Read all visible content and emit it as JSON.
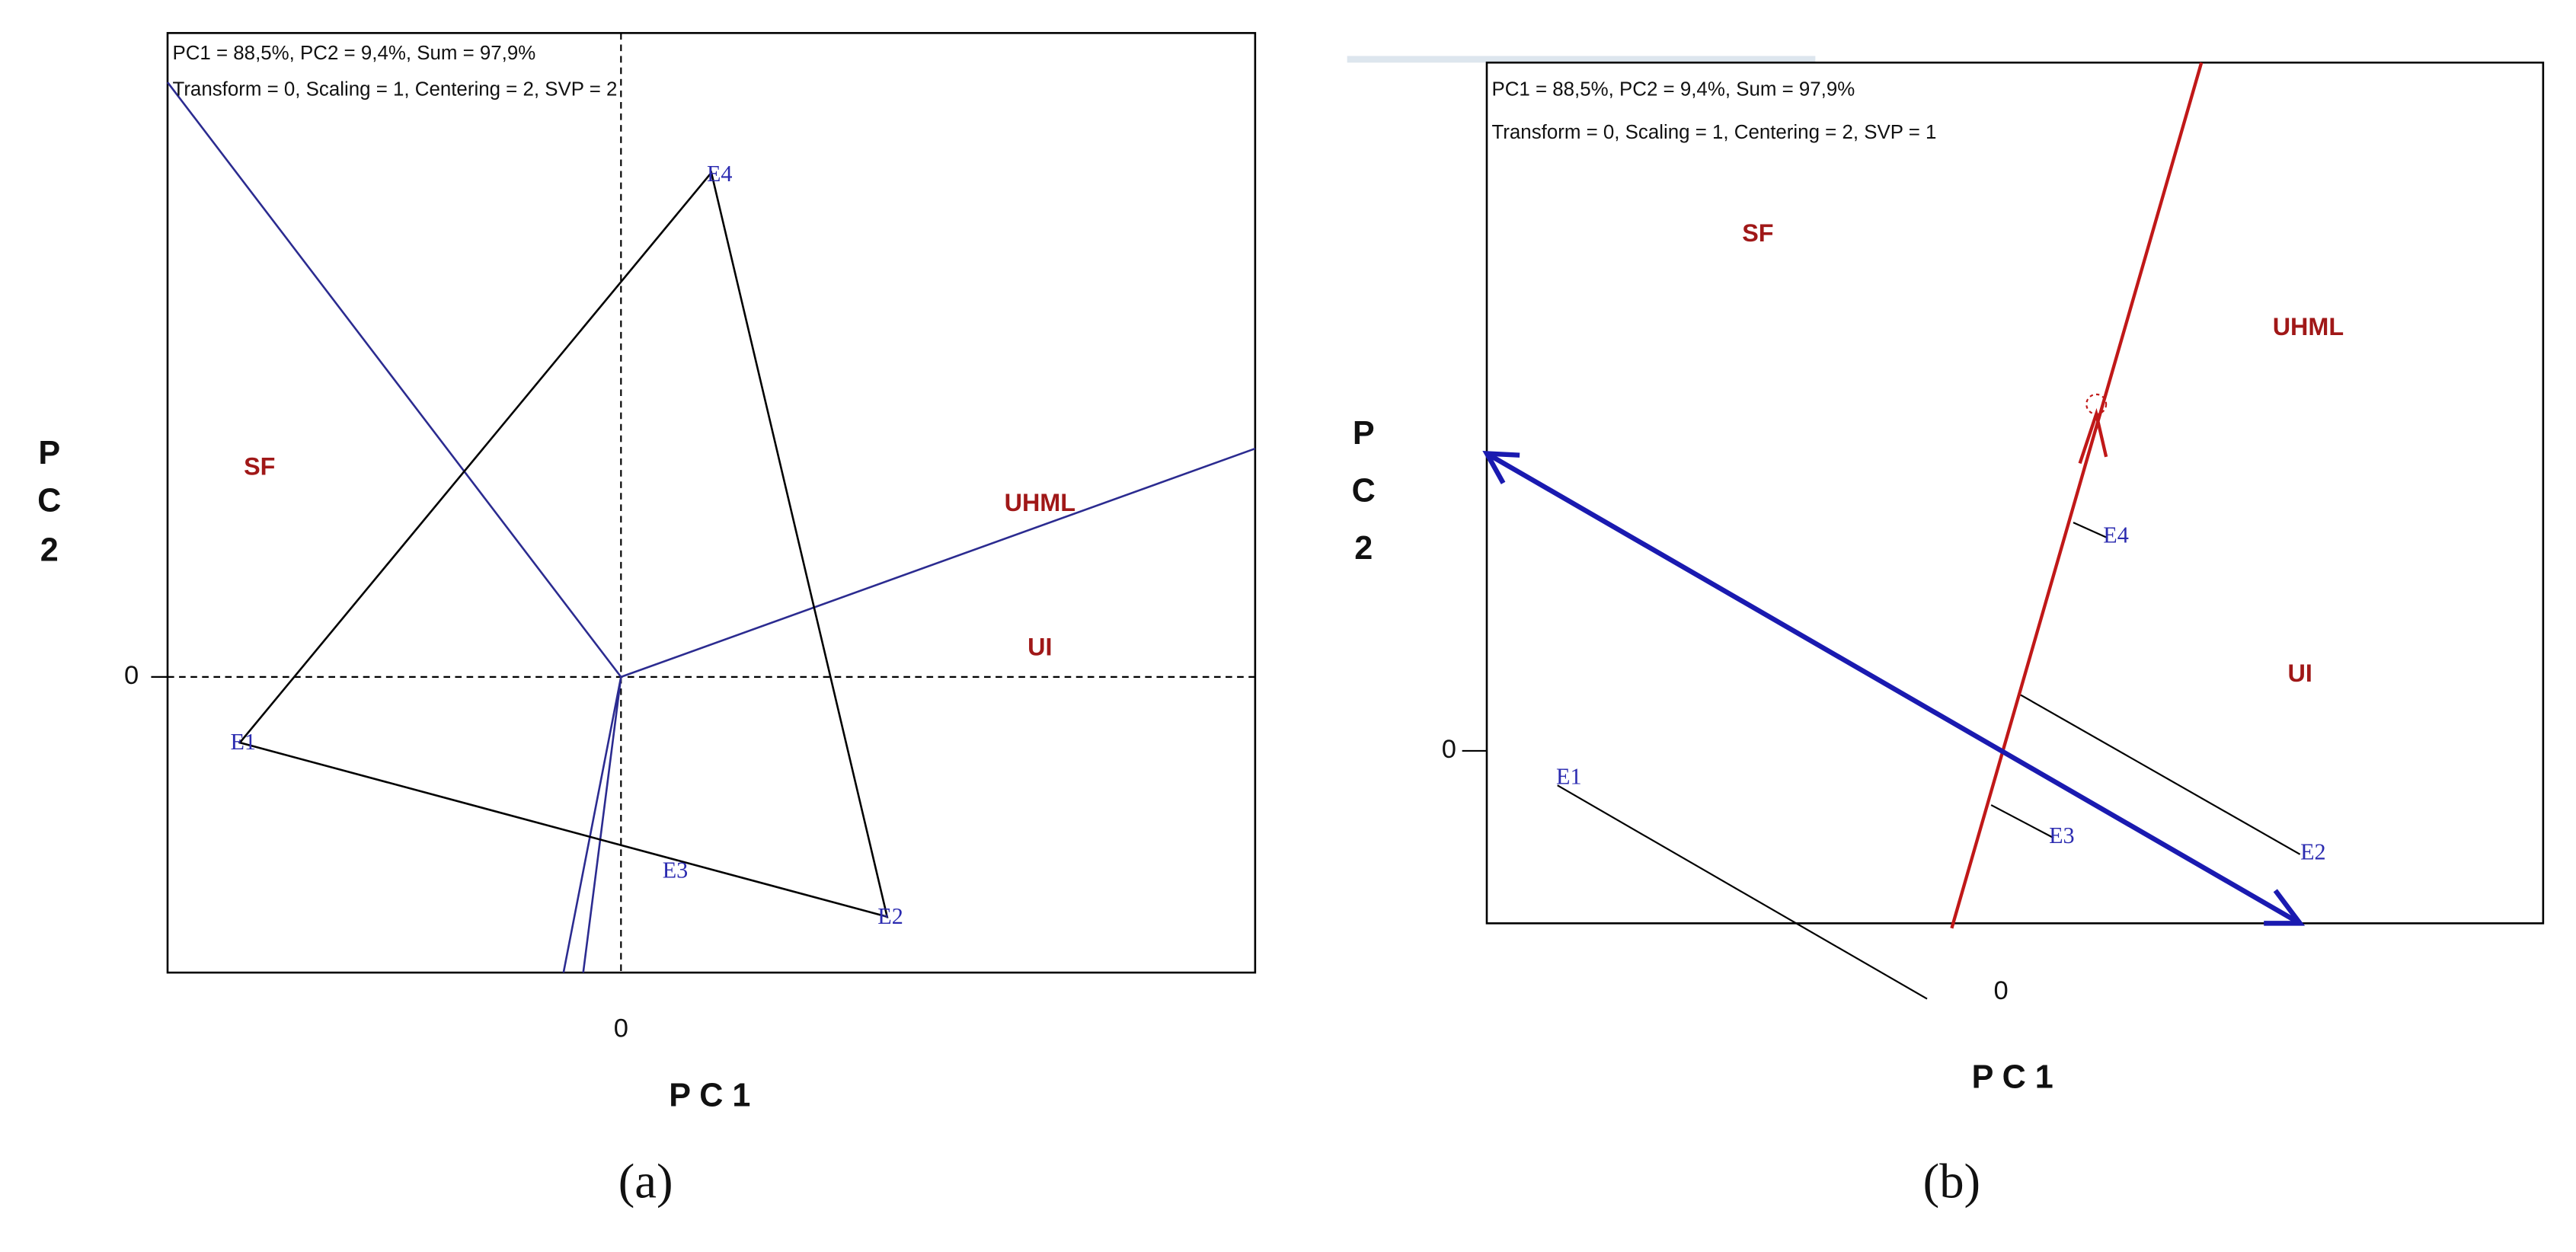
{
  "panels": [
    {
      "caption": "(a)",
      "info": [
        "PC1 = 88,5%, PC2 = 9,4%, Sum = 97,9%",
        "Transform = 0, Scaling = 1, Centering = 2, SVP = 2"
      ],
      "x_label": "P C 1",
      "y_label": [
        "P",
        "C",
        "2"
      ],
      "x_tick": "0",
      "y_tick": "0",
      "genotypes": [
        "E1",
        "E2",
        "E3",
        "E4"
      ],
      "traits": [
        "SF",
        "UHML",
        "UI"
      ]
    },
    {
      "caption": "(b)",
      "info": [
        "PC1 = 88,5%, PC2 = 9,4%, Sum = 97,9%",
        "Transform = 0, Scaling = 1, Centering = 2, SVP = 1"
      ],
      "x_label": "P C 1",
      "y_label": [
        "P",
        "C",
        "2"
      ],
      "x_tick": "0",
      "y_tick": "0",
      "genotypes": [
        "E1",
        "E2",
        "E3",
        "E4"
      ],
      "traits": [
        "SF",
        "UHML",
        "UI"
      ]
    }
  ]
}
